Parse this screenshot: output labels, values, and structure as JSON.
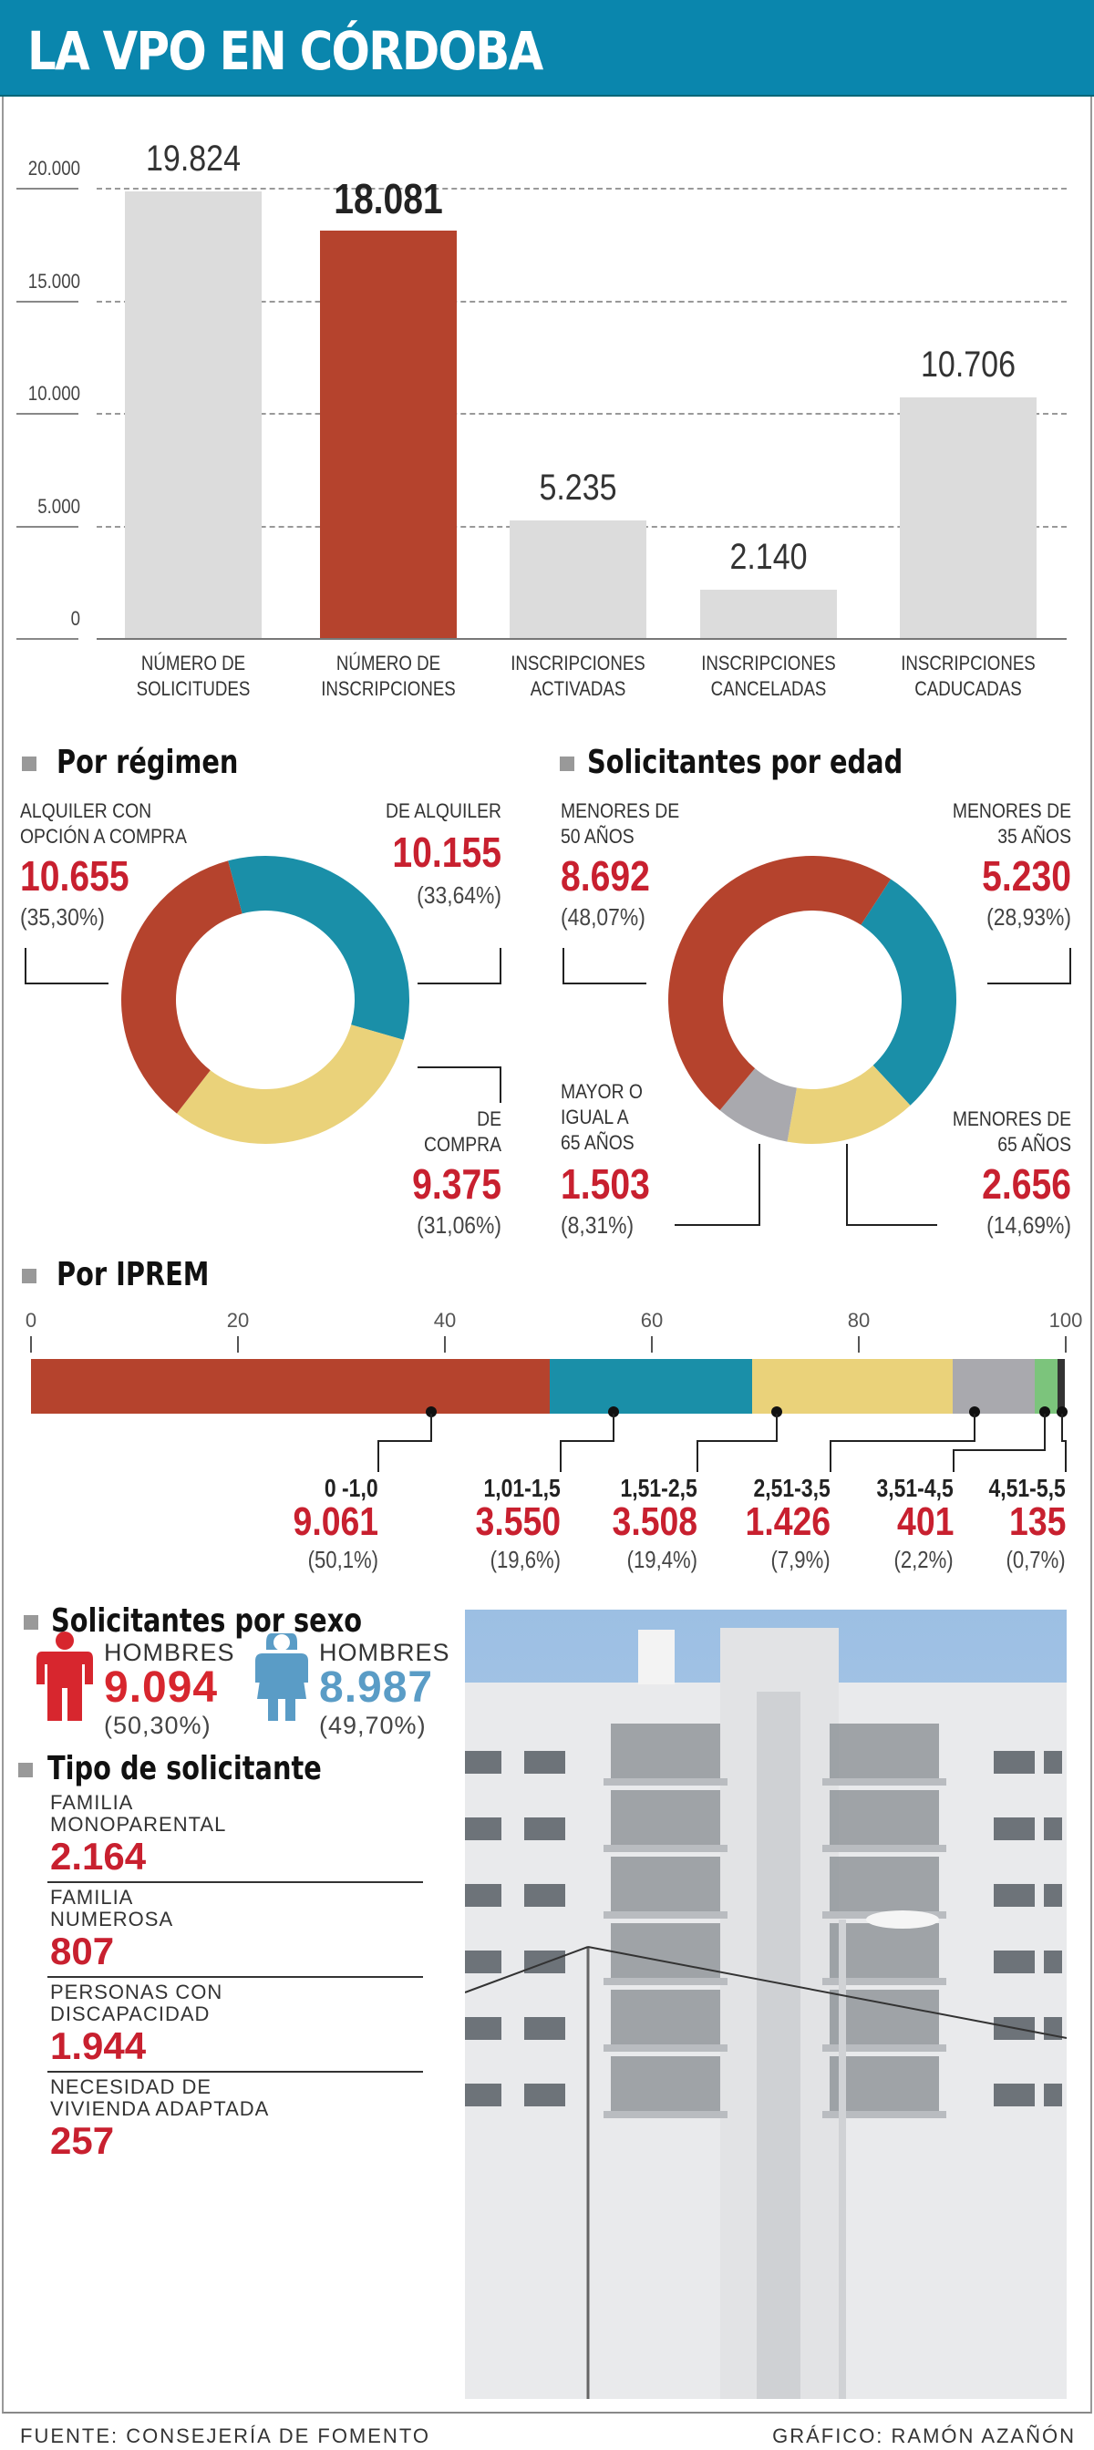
{
  "title": "LA VPO EN CÓRDOBA",
  "chart_data": [
    {
      "type": "bar",
      "categories": [
        "NÚMERO DE SOLICITUDES",
        "NÚMERO DE INSCRIPCIONES",
        "INSCRIPCIONES ACTIVADAS",
        "INSCRIPCIONES CANCELADAS",
        "INSCRIPCIONES CADUCADAS"
      ],
      "values": [
        19824,
        18081,
        5235,
        2140,
        10706
      ],
      "value_labels": [
        "19.824",
        "18.081",
        "5.235",
        "2.140",
        "10.706"
      ],
      "highlight_index": 1,
      "ylim": [
        0,
        20000
      ],
      "yticks": [
        "20.000",
        "15.000",
        "10.000",
        "5.000",
        "0"
      ],
      "grid": true,
      "colors": {
        "default": "#dcdcdc",
        "highlight": "#b5432d"
      }
    },
    {
      "type": "pie",
      "title": "Por régimen",
      "slices": [
        {
          "label": "DE ALQUILER",
          "value": 10155,
          "value_label": "10.155",
          "pct": "(33,64%)",
          "color": "#1a8fa8"
        },
        {
          "label": "DE COMPRA",
          "value": 9375,
          "value_label": "9.375",
          "pct": "(31,06%)",
          "color": "#ead27a"
        },
        {
          "label": "ALQUILER CON OPCIÓN A COMPRA",
          "value": 10655,
          "value_label": "10.655",
          "pct": "(35,30%)",
          "color": "#b5432d"
        }
      ]
    },
    {
      "type": "pie",
      "title": "Solicitantes por edad",
      "slices": [
        {
          "label": "MENORES DE 35 AÑOS",
          "value": 5230,
          "value_label": "5.230",
          "pct": "(28,93%)",
          "color": "#1a8fa8"
        },
        {
          "label": "MENORES DE 65 AÑOS",
          "value": 2656,
          "value_label": "2.656",
          "pct": "(14,69%)",
          "color": "#ead27a"
        },
        {
          "label": "MAYOR O IGUAL A 65 AÑOS",
          "value": 1503,
          "value_label": "1.503",
          "pct": "(8,31%)",
          "color": "#a9a9ae"
        },
        {
          "label": "MENORES DE 50 AÑOS",
          "value": 8692,
          "value_label": "8.692",
          "pct": "(48,07%)",
          "color": "#b5432d"
        }
      ]
    },
    {
      "type": "bar",
      "orientation": "stacked-horizontal",
      "title": "Por IPREM",
      "xlim": [
        0,
        100
      ],
      "xticks": [
        "0",
        "20",
        "40",
        "60",
        "80",
        "100"
      ],
      "segments": [
        {
          "label": "0 -1,0",
          "value": 9061,
          "value_label": "9.061",
          "percent": 50.1,
          "pct": "(50,1%)",
          "color": "#b5432d"
        },
        {
          "label": "1,01-1,5",
          "value": 3550,
          "value_label": "3.550",
          "percent": 19.6,
          "pct": "(19,6%)",
          "color": "#1a8fa8"
        },
        {
          "label": "1,51-2,5",
          "value": 3508,
          "value_label": "3.508",
          "percent": 19.4,
          "pct": "(19,4%)",
          "color": "#ead27a"
        },
        {
          "label": "2,51-3,5",
          "value": 1426,
          "value_label": "1.426",
          "percent": 7.9,
          "pct": "(7,9%)",
          "color": "#a9a9ae"
        },
        {
          "label": "3,51-4,5",
          "value": 401,
          "value_label": "401",
          "percent": 2.2,
          "pct": "(2,2%)",
          "color": "#7cc47c"
        },
        {
          "label": "4,51-5,5",
          "value": 135,
          "value_label": "135",
          "percent": 0.7,
          "pct": "(0,7%)",
          "color": "#333333"
        }
      ]
    }
  ],
  "sexo": {
    "title": "Solicitantes por sexo",
    "items": [
      {
        "label": "HOMBRES",
        "value": "9.094",
        "pct": "(50,30%)",
        "icon": "man-icon",
        "color": "#d7262e"
      },
      {
        "label": "HOMBRES",
        "value": "8.987",
        "pct": "(49,70%)",
        "icon": "woman-icon",
        "color": "#5a9cc6"
      }
    ]
  },
  "tipo": {
    "title": "Tipo de solicitante",
    "items": [
      {
        "label1": "FAMILIA",
        "label2": "MONOPARENTAL",
        "value": "2.164"
      },
      {
        "label1": "FAMILIA",
        "label2": "NUMEROSA",
        "value": "807"
      },
      {
        "label1": "PERSONAS CON",
        "label2": "DISCAPACIDAD",
        "value": "1.944"
      },
      {
        "label1": "NECESIDAD DE",
        "label2": "VIVIENDA ADAPTADA",
        "value": "257"
      }
    ]
  },
  "footer": {
    "source": "FUENTE: CONSEJERÍA DE FOMENTO",
    "credit": "GRÁFICO: RAMÓN AZAÑÓN"
  }
}
